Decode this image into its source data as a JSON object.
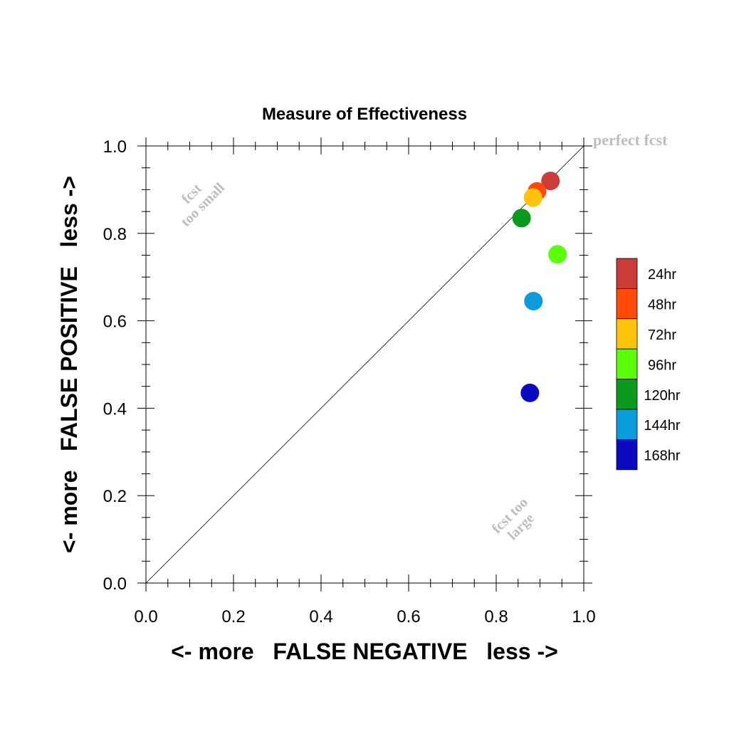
{
  "chart_data": {
    "type": "scatter",
    "title": "Measure of Effectiveness",
    "xlabel": "<- more   FALSE NEGATIVE   less ->",
    "ylabel": "<- more   FALSE POSITIVE   less ->",
    "xlim": [
      0.0,
      1.0
    ],
    "ylim": [
      0.0,
      1.0
    ],
    "x_ticks": [
      "0.0",
      "0.2",
      "0.4",
      "0.6",
      "0.8",
      "1.0"
    ],
    "y_ticks": [
      "0.0",
      "0.2",
      "0.4",
      "0.6",
      "0.8",
      "1.0"
    ],
    "grid": false,
    "diagonal": true,
    "annotations": {
      "perfect": "perfect fcst",
      "small_line1": "fcst",
      "small_line2": "too small",
      "large_line1": "fcst too",
      "large_line2": "large"
    },
    "legend_position": "right",
    "series": [
      {
        "name": "168hr",
        "color": "#0a0ac0",
        "x": 0.877,
        "y": 0.435
      },
      {
        "name": "144hr",
        "color": "#0a9bdc",
        "x": 0.885,
        "y": 0.645
      },
      {
        "name": "120hr",
        "color": "#0a9a1e",
        "x": 0.858,
        "y": 0.835
      },
      {
        "name": "96hr",
        "color": "#5aff0a",
        "x": 0.94,
        "y": 0.752
      },
      {
        "name": "72hr",
        "color": "#ffc40a",
        "x": 0.884,
        "y": 0.882
      },
      {
        "name": "48hr",
        "color": "#ff4a0a",
        "x": 0.893,
        "y": 0.896
      },
      {
        "name": "24hr",
        "color": "#cc3a3a",
        "x": 0.924,
        "y": 0.92
      }
    ]
  }
}
